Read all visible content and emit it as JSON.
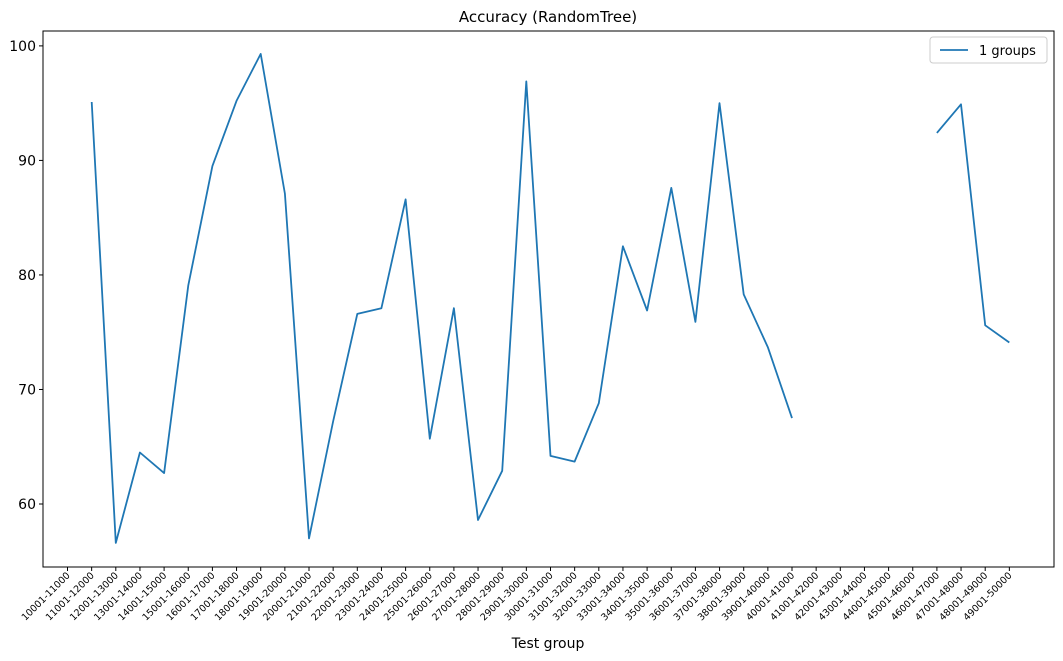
{
  "chart_data": {
    "type": "line",
    "title": "Accuracy (RandomTree)",
    "xlabel": "Test group",
    "ylabel": "",
    "ylim": [
      54.5,
      101.3
    ],
    "yticks": [
      60,
      70,
      80,
      90,
      100
    ],
    "grid": false,
    "legend_position": "top-right",
    "categories": [
      "10001-11000",
      "11001-12000",
      "12001-13000",
      "13001-14000",
      "14001-15000",
      "15001-16000",
      "16001-17000",
      "17001-18000",
      "18001-19000",
      "19001-20000",
      "20001-21000",
      "21001-22000",
      "22001-23000",
      "23001-24000",
      "24001-25000",
      "25001-26000",
      "26001-27000",
      "27001-28000",
      "28001-29000",
      "29001-30000",
      "30001-31000",
      "31001-32000",
      "32001-33000",
      "33001-34000",
      "34001-35000",
      "35001-36000",
      "36001-37000",
      "37001-38000",
      "38001-39000",
      "39001-40000",
      "40001-41000",
      "41001-42000",
      "42001-43000",
      "43001-44000",
      "44001-45000",
      "45001-46000",
      "46001-47000",
      "47001-48000",
      "48001-49000",
      "49001-50000"
    ],
    "series": [
      {
        "name": "1 groups",
        "color": "#1f77b4",
        "values": [
          null,
          95.1,
          56.6,
          64.5,
          62.7,
          79.1,
          89.5,
          95.2,
          99.3,
          87.1,
          57.0,
          67.2,
          76.6,
          77.1,
          86.6,
          65.7,
          77.1,
          58.6,
          62.9,
          96.9,
          64.2,
          63.7,
          68.8,
          82.5,
          76.9,
          87.6,
          75.9,
          95.0,
          78.3,
          73.7,
          67.5,
          null,
          null,
          null,
          null,
          null,
          92.4,
          94.9,
          75.6,
          74.1
        ]
      }
    ]
  }
}
